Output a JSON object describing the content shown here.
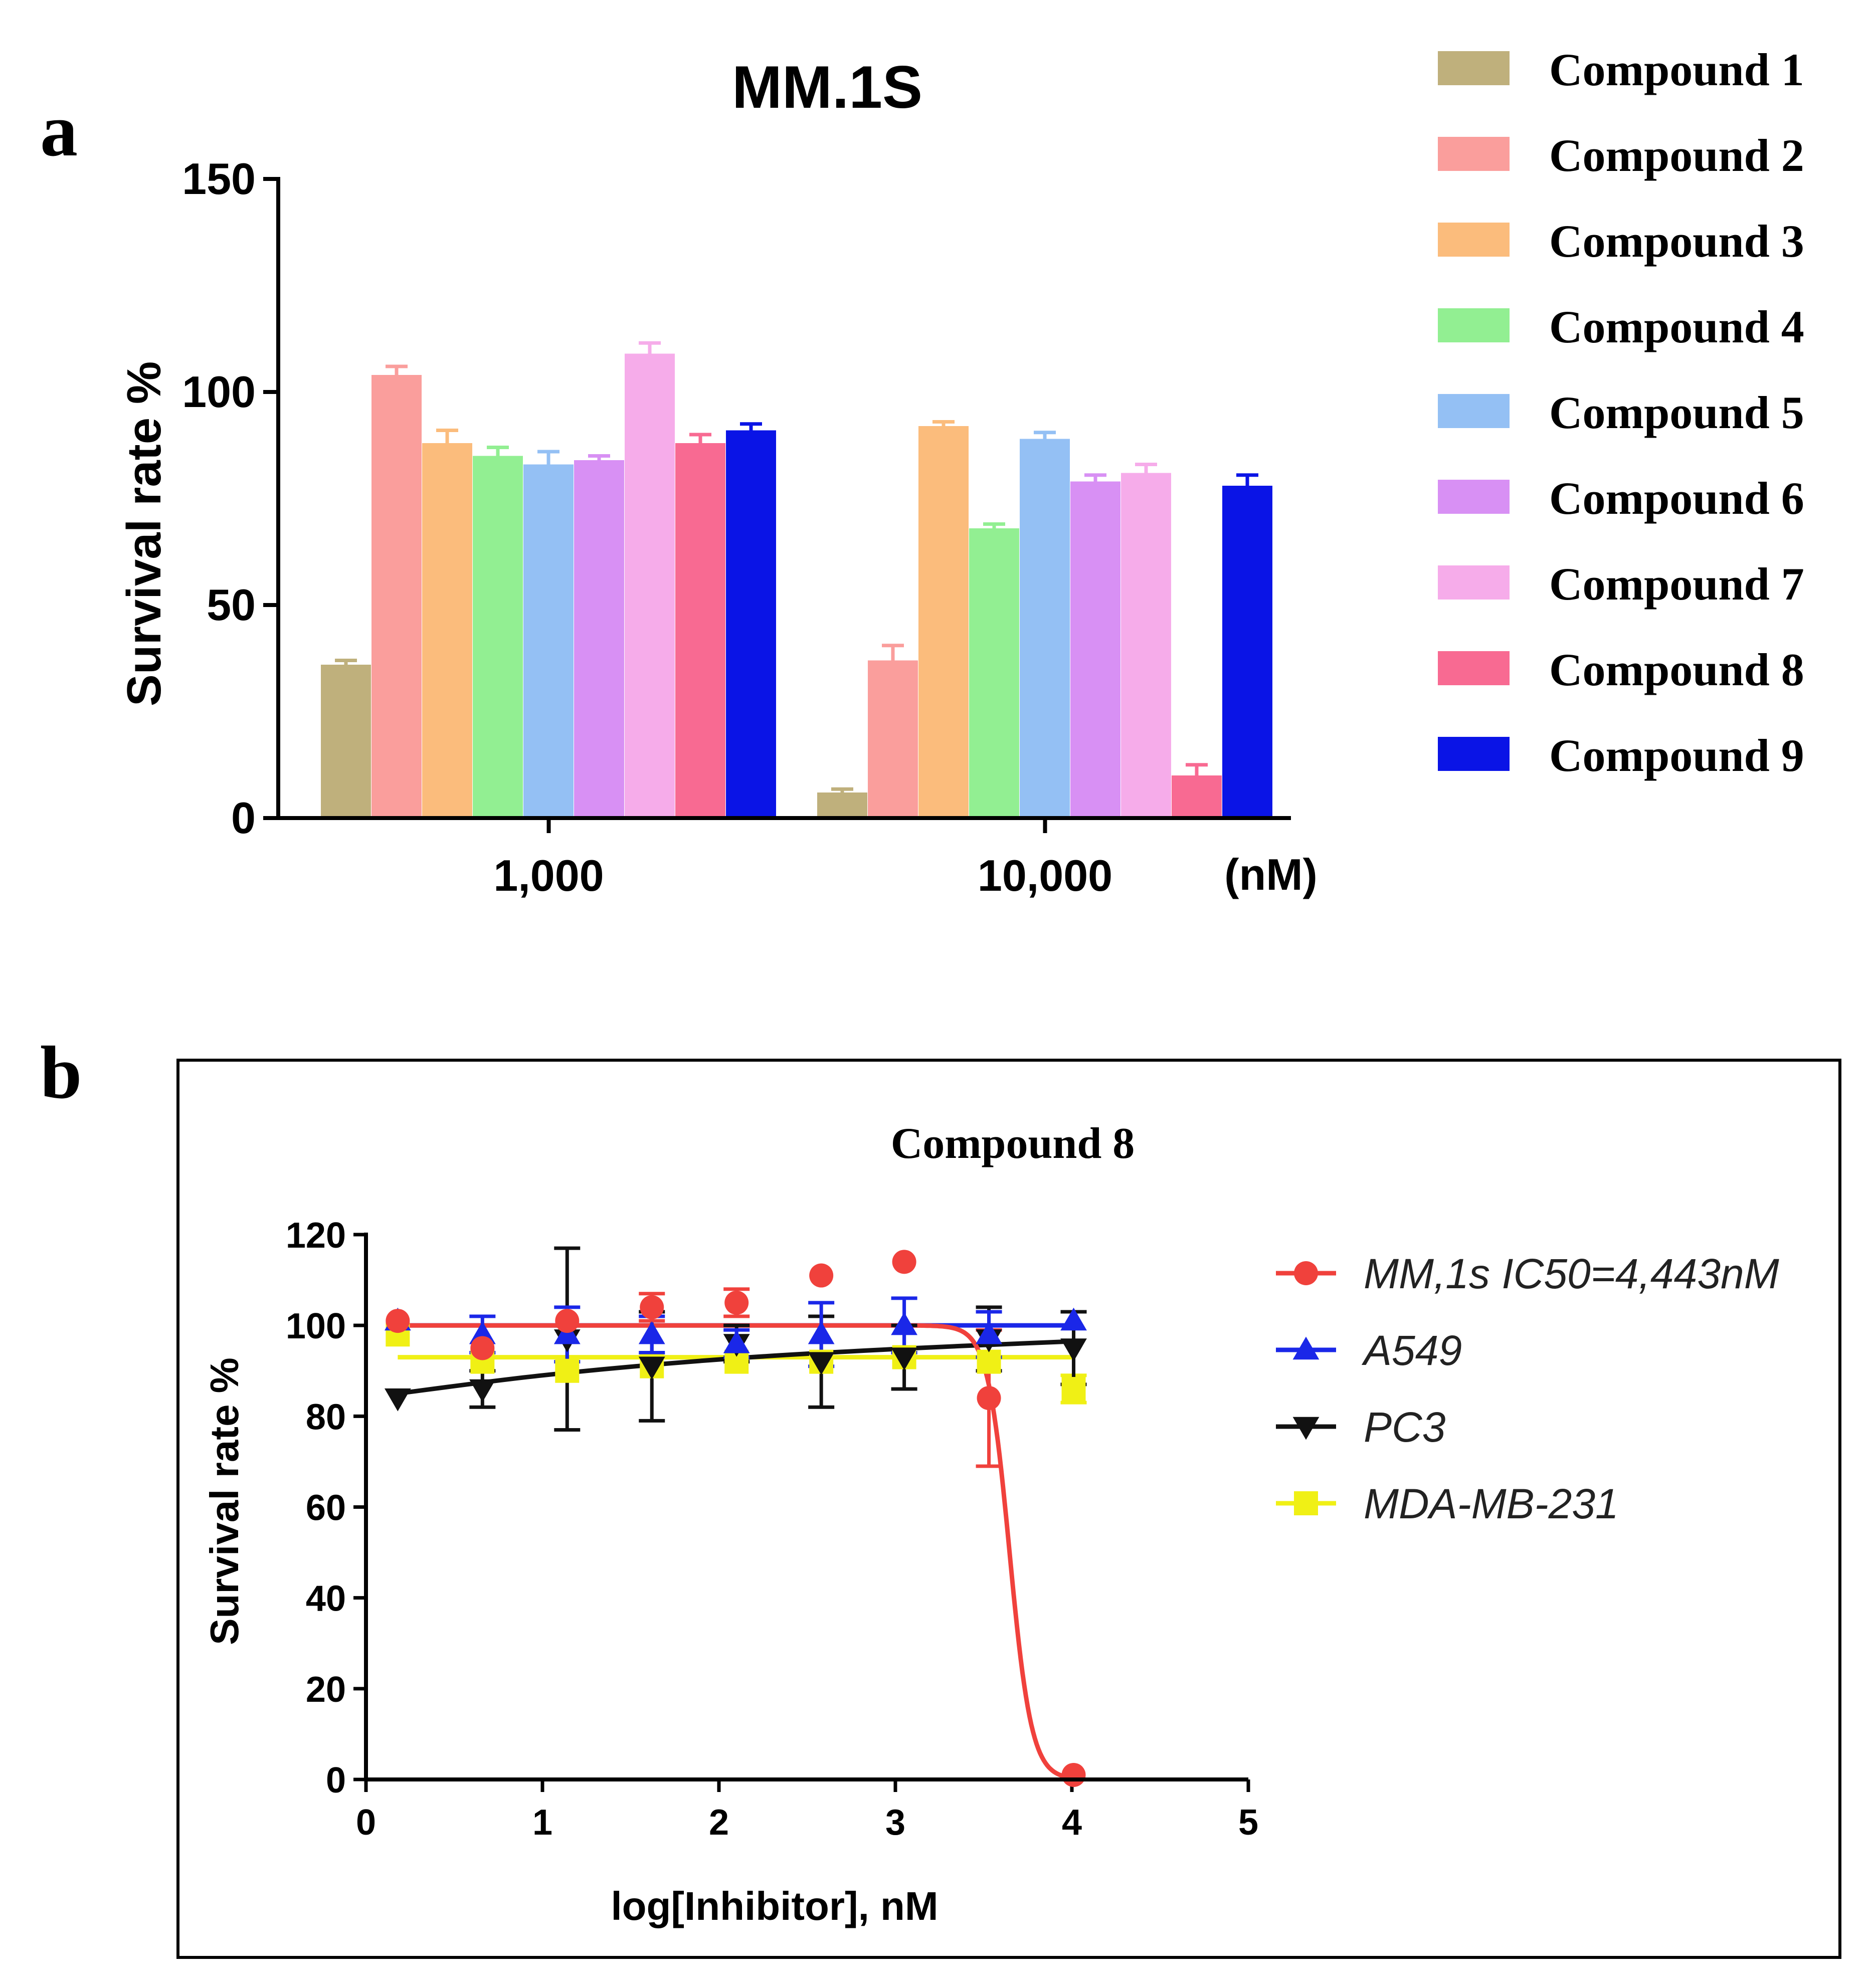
{
  "panels": {
    "a": "a",
    "b": "b"
  },
  "chart_data": [
    {
      "type": "bar",
      "title": "MM.1S",
      "ylabel": "Survival rate %",
      "xlabel": "",
      "x_unit_label": "(nM)",
      "categories": [
        "1,000",
        "10,000"
      ],
      "ylim": [
        0,
        150
      ],
      "yticks": [
        0,
        50,
        100,
        150
      ],
      "legend_position": "right",
      "series": [
        {
          "name": "Compound 1",
          "color": "#bfb07c",
          "values": [
            36,
            6
          ],
          "errors": [
            1,
            0.8
          ]
        },
        {
          "name": "Compound 2",
          "color": "#fa9e9c",
          "values": [
            104,
            37
          ],
          "errors": [
            2,
            3.5
          ]
        },
        {
          "name": "Compound 3",
          "color": "#fbbc7c",
          "values": [
            88,
            92
          ],
          "errors": [
            3,
            1
          ]
        },
        {
          "name": "Compound 4",
          "color": "#92ef92",
          "values": [
            85,
            68
          ],
          "errors": [
            2,
            1
          ]
        },
        {
          "name": "Compound 5",
          "color": "#94c0f4",
          "values": [
            83,
            89
          ],
          "errors": [
            3,
            1.5
          ]
        },
        {
          "name": "Compound 6",
          "color": "#d890f4",
          "values": [
            84,
            79
          ],
          "errors": [
            1,
            1.5
          ]
        },
        {
          "name": "Compound 7",
          "color": "#f6acea",
          "values": [
            109,
            81
          ],
          "errors": [
            2.5,
            2
          ]
        },
        {
          "name": "Compound 8",
          "color": "#f86a92",
          "values": [
            88,
            10
          ],
          "errors": [
            2,
            2.5
          ]
        },
        {
          "name": "Compound 9",
          "color": "#0a14e6",
          "values": [
            91,
            78
          ],
          "errors": [
            1.5,
            2.5
          ]
        }
      ]
    },
    {
      "type": "scatter",
      "title": "Compound 8",
      "xlabel": "log[Inhibitor], nM",
      "ylabel": "Survival rate %",
      "xlim": [
        0,
        5
      ],
      "ylim": [
        0,
        120
      ],
      "xticks": [
        0,
        1,
        2,
        3,
        4,
        5
      ],
      "yticks": [
        0,
        20,
        40,
        60,
        80,
        100,
        120
      ],
      "legend_position": "right",
      "series": [
        {
          "name": "MM,1s IC50=4,443nM",
          "color": "#f0413c",
          "marker": "circle",
          "x": [
            0.18,
            0.66,
            1.14,
            1.62,
            2.1,
            2.58,
            3.05,
            3.53,
            4.01
          ],
          "y": [
            101,
            95,
            101,
            104,
            105,
            111,
            114,
            84,
            1
          ],
          "err": [
            0,
            0,
            0,
            3,
            3,
            0,
            0,
            15,
            0
          ],
          "fit": {
            "kind": "sigmoid",
            "top": 100,
            "bottom": 0,
            "log_ic50": 3.647,
            "hill": -7
          }
        },
        {
          "name": "A549",
          "color": "#1a27e8",
          "marker": "triangle-up",
          "x": [
            0.18,
            0.66,
            1.14,
            1.62,
            2.1,
            2.58,
            3.05,
            3.53,
            4.01
          ],
          "y": [
            101,
            98,
            98,
            98,
            96,
            98,
            100,
            98,
            101
          ],
          "err": [
            0,
            4,
            6,
            4,
            3,
            7,
            6,
            5,
            0
          ],
          "fit": {
            "kind": "line",
            "x": [
              0.18,
              4.01
            ],
            "y": [
              100,
              100
            ]
          }
        },
        {
          "name": "PC3",
          "color": "#111111",
          "marker": "triangle-down",
          "x": [
            0.18,
            0.66,
            1.14,
            1.62,
            2.1,
            2.58,
            3.05,
            3.53,
            4.01
          ],
          "y": [
            84,
            86,
            97,
            91,
            96,
            92,
            93,
            97,
            95
          ],
          "err": [
            0,
            4,
            20,
            12,
            4,
            10,
            7,
            7,
            8
          ],
          "fit": {
            "kind": "curve",
            "x": [
              0.18,
              1.0,
              2.0,
              3.0,
              4.01
            ],
            "y": [
              85,
              89,
              92.5,
              94.8,
              96.5
            ]
          }
        },
        {
          "name": "MDA-MB-231",
          "color": "#f0f015",
          "marker": "square",
          "x": [
            0.18,
            0.66,
            1.14,
            1.62,
            2.1,
            2.58,
            3.05,
            3.53,
            4.01
          ],
          "y": [
            98,
            92,
            90,
            91,
            92,
            92,
            93,
            92,
            86
          ],
          "err": [
            0,
            0,
            0,
            0,
            0,
            0,
            0,
            0,
            3
          ],
          "fit": {
            "kind": "line",
            "x": [
              0.18,
              4.01
            ],
            "y": [
              93,
              93
            ]
          }
        }
      ]
    }
  ]
}
